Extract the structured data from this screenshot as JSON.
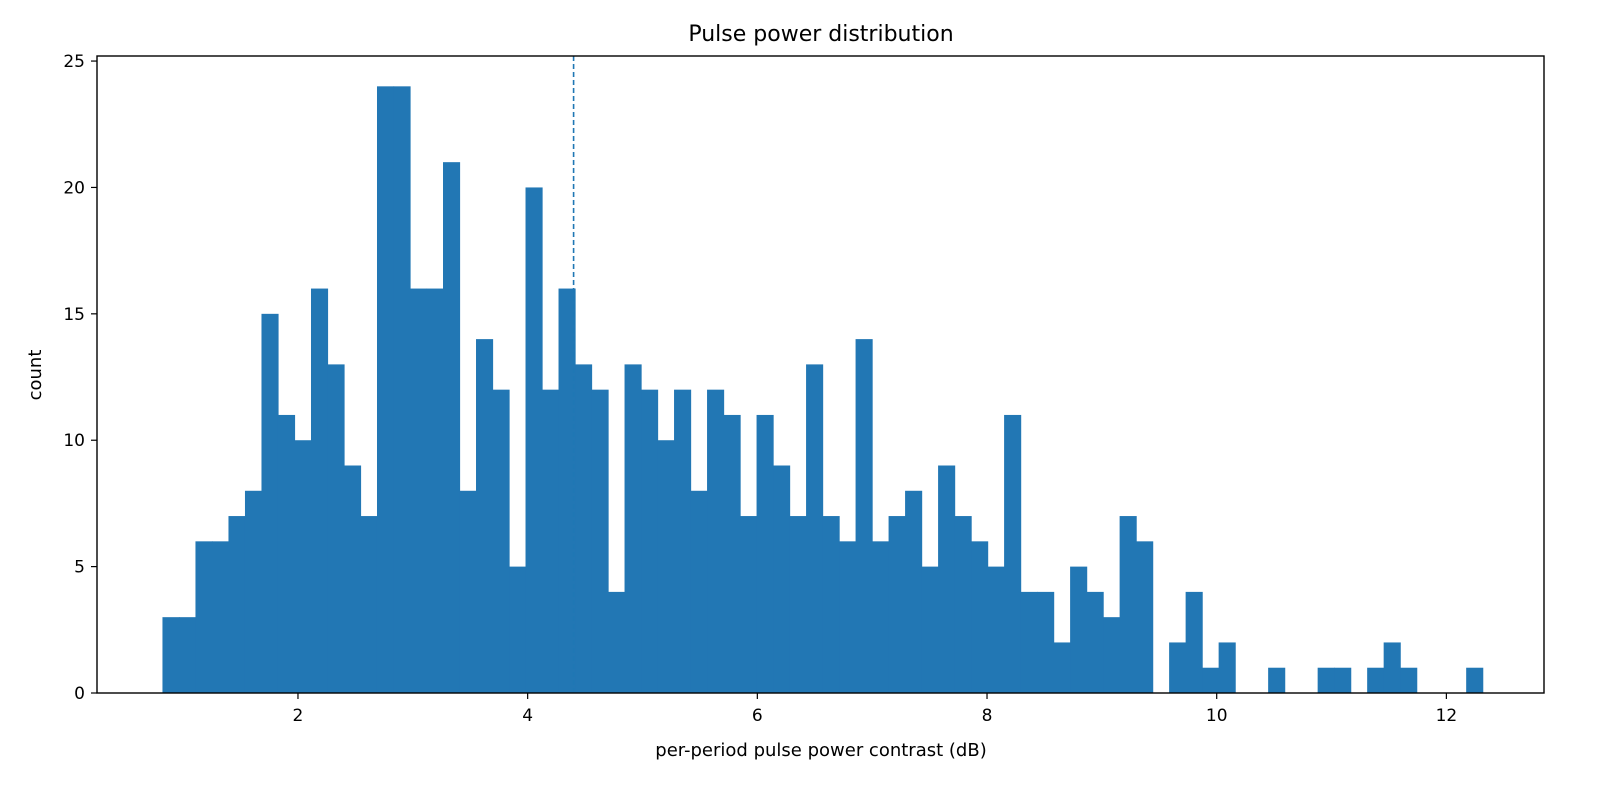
{
  "chart_data": {
    "type": "bar",
    "title": "Pulse power distribution",
    "xlabel": "per-period pulse power contrast (dB)",
    "ylabel": "count",
    "xlim": [
      0.25,
      12.85
    ],
    "ylim": [
      0,
      25.2
    ],
    "x_ticks": [
      2,
      4,
      6,
      8,
      10,
      12
    ],
    "y_ticks": [
      0,
      5,
      10,
      15,
      20,
      25
    ],
    "bin_start": 0.82,
    "bin_width": 0.1437,
    "counts": [
      3,
      3,
      6,
      6,
      7,
      8,
      15,
      11,
      10,
      16,
      13,
      9,
      7,
      24,
      24,
      16,
      16,
      21,
      8,
      14,
      12,
      5,
      20,
      12,
      16,
      13,
      12,
      4,
      13,
      12,
      10,
      12,
      8,
      12,
      11,
      7,
      11,
      9,
      7,
      13,
      7,
      6,
      14,
      6,
      7,
      8,
      5,
      9,
      7,
      6,
      5,
      11,
      4,
      4,
      2,
      5,
      4,
      3,
      7,
      6,
      0,
      2,
      4,
      1,
      2,
      0,
      0,
      1,
      0,
      0,
      1,
      1,
      0,
      1,
      2,
      1,
      0,
      0,
      0,
      1
    ],
    "reference_line_x": 4.4,
    "bar_color": "#2277b4",
    "grid": false,
    "legend": "none"
  }
}
